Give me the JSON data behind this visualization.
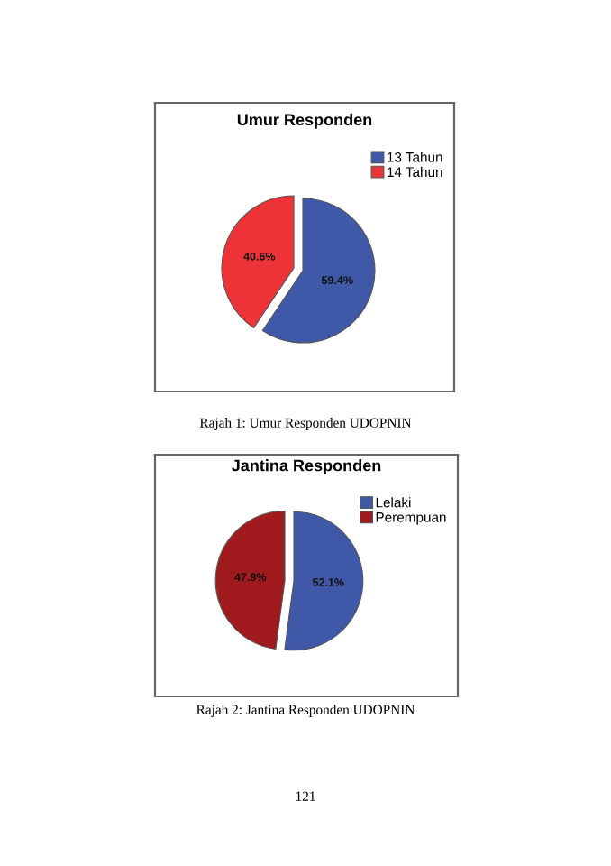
{
  "chart_data": [
    {
      "type": "pie",
      "title": "Umur Responden",
      "categories": [
        "13 Tahun",
        "14 Tahun"
      ],
      "values": [
        59.4,
        40.6
      ],
      "colors": [
        "#3f58a8",
        "#ee3338"
      ],
      "value_labels": [
        "59.4%",
        "40.6%"
      ],
      "legend": "top right",
      "annotations": [
        "Rajah 1: Umur Responden UDOPNIN"
      ]
    },
    {
      "type": "pie",
      "title": "Jantina Responden",
      "categories": [
        "Lelaki",
        "Perempuan"
      ],
      "values": [
        52.1,
        47.9
      ],
      "colors": [
        "#3f58a8",
        "#a11a1e"
      ],
      "value_labels": [
        "52.1%",
        "47.9%"
      ],
      "legend": "top right",
      "annotations": [
        "Rajah 2: Jantina Responden UDOPNIN",
        "121"
      ]
    }
  ]
}
